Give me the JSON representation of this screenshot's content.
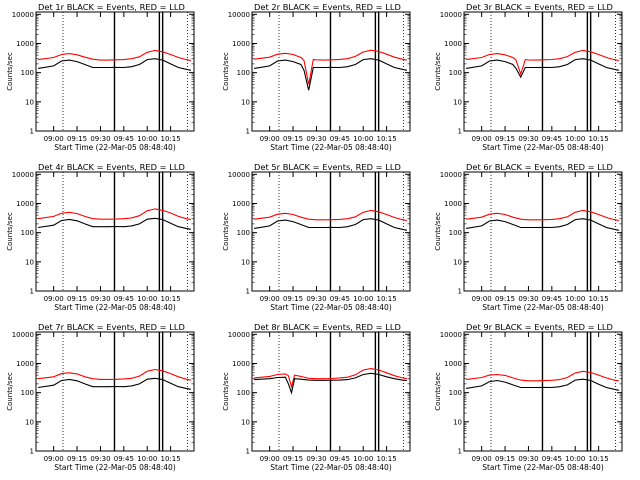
{
  "page": {
    "background": "#ffffff",
    "frame_color": "#000000"
  },
  "colors": {
    "events": "#000000",
    "lld": "#ff0000"
  },
  "common": {
    "xlabel": "Start Time (22-Mar-05 08:48:40)",
    "ylabel": "Counts/sec",
    "x_ticks": [
      "09:00",
      "09:15",
      "09:30",
      "09:45",
      "10:00",
      "10:15"
    ],
    "y_ticks": [
      "1",
      "10",
      "100",
      "1000",
      "10000"
    ]
  },
  "chart_data": [
    {
      "type": "line",
      "y_scale": "log",
      "title": "Det 1r BLACK = Events, RED = LLD",
      "xlim": [
        "08:48:40",
        "10:30:00"
      ],
      "ylim": [
        1,
        12000
      ],
      "x": [
        "08:50",
        "09:00",
        "09:05",
        "09:10",
        "09:15",
        "09:20",
        "09:25",
        "09:30",
        "09:35",
        "09:40",
        "09:45",
        "09:50",
        "09:55",
        "10:00",
        "10:05",
        "10:10",
        "10:15",
        "10:20",
        "10:25",
        "10:28"
      ],
      "series": [
        {
          "name": "LLD",
          "color": "red",
          "values": [
            280,
            330,
            420,
            450,
            410,
            340,
            290,
            270,
            270,
            275,
            280,
            300,
            350,
            500,
            580,
            520,
            420,
            330,
            280,
            260
          ]
        },
        {
          "name": "Events",
          "color": "black",
          "values": [
            140,
            170,
            250,
            270,
            240,
            190,
            150,
            150,
            150,
            152,
            150,
            160,
            190,
            280,
            300,
            270,
            200,
            150,
            130,
            120
          ]
        }
      ]
    },
    {
      "type": "line",
      "y_scale": "log",
      "title": "Det 2r BLACK = Events, RED = LLD",
      "xlim": [
        "08:48:40",
        "10:30:00"
      ],
      "ylim": [
        1,
        12000
      ],
      "x": [
        "08:50",
        "09:00",
        "09:05",
        "09:10",
        "09:15",
        "09:20",
        "09:22",
        "09:25",
        "09:28",
        "09:30",
        "09:35",
        "09:40",
        "09:45",
        "09:50",
        "09:55",
        "10:00",
        "10:05",
        "10:10",
        "10:15",
        "10:20",
        "10:25",
        "10:28"
      ],
      "series": [
        {
          "name": "LLD",
          "color": "red",
          "values": [
            290,
            340,
            430,
            460,
            420,
            330,
            260,
            40,
            280,
            275,
            270,
            275,
            285,
            300,
            360,
            510,
            590,
            530,
            430,
            340,
            290,
            270
          ]
        },
        {
          "name": "Events",
          "color": "black",
          "values": [
            140,
            170,
            250,
            270,
            240,
            190,
            120,
            25,
            150,
            150,
            150,
            152,
            150,
            160,
            190,
            280,
            300,
            270,
            200,
            150,
            130,
            120
          ]
        }
      ]
    },
    {
      "type": "line",
      "y_scale": "log",
      "title": "Det 3r BLACK = Events, RED = LLD",
      "xlim": [
        "08:48:40",
        "10:30:00"
      ],
      "ylim": [
        1,
        12000
      ],
      "x": [
        "08:50",
        "09:00",
        "09:05",
        "09:10",
        "09:15",
        "09:20",
        "09:22",
        "09:25",
        "09:28",
        "09:30",
        "09:35",
        "09:40",
        "09:45",
        "09:50",
        "09:55",
        "10:00",
        "10:05",
        "10:10",
        "10:15",
        "10:20",
        "10:25",
        "10:28"
      ],
      "series": [
        {
          "name": "LLD",
          "color": "red",
          "values": [
            280,
            330,
            420,
            450,
            410,
            330,
            270,
            90,
            280,
            272,
            270,
            275,
            282,
            300,
            355,
            500,
            580,
            520,
            420,
            330,
            280,
            260
          ]
        },
        {
          "name": "Events",
          "color": "black",
          "values": [
            140,
            170,
            250,
            270,
            240,
            190,
            140,
            70,
            150,
            150,
            150,
            152,
            150,
            160,
            190,
            280,
            300,
            270,
            200,
            150,
            130,
            120
          ]
        }
      ]
    },
    {
      "type": "line",
      "y_scale": "log",
      "title": "Det 4r BLACK = Events, RED = LLD",
      "xlim": [
        "08:48:40",
        "10:30:00"
      ],
      "ylim": [
        1,
        12000
      ],
      "x": [
        "08:50",
        "09:00",
        "09:05",
        "09:10",
        "09:15",
        "09:20",
        "09:25",
        "09:30",
        "09:35",
        "09:40",
        "09:45",
        "09:50",
        "09:55",
        "10:00",
        "10:05",
        "10:10",
        "10:15",
        "10:20",
        "10:25",
        "10:28"
      ],
      "series": [
        {
          "name": "LLD",
          "color": "red",
          "values": [
            300,
            360,
            460,
            500,
            450,
            360,
            300,
            290,
            290,
            292,
            300,
            320,
            380,
            560,
            650,
            580,
            470,
            360,
            300,
            280
          ]
        },
        {
          "name": "Events",
          "color": "black",
          "values": [
            150,
            180,
            260,
            285,
            255,
            200,
            160,
            160,
            160,
            162,
            160,
            170,
            200,
            290,
            310,
            280,
            210,
            160,
            140,
            130
          ]
        }
      ]
    },
    {
      "type": "line",
      "y_scale": "log",
      "title": "Det 5r BLACK = Events, RED = LLD",
      "xlim": [
        "08:48:40",
        "10:30:00"
      ],
      "ylim": [
        1,
        12000
      ],
      "x": [
        "08:50",
        "09:00",
        "09:05",
        "09:10",
        "09:15",
        "09:20",
        "09:25",
        "09:30",
        "09:35",
        "09:40",
        "09:45",
        "09:50",
        "09:55",
        "10:00",
        "10:05",
        "10:10",
        "10:15",
        "10:20",
        "10:25",
        "10:28"
      ],
      "series": [
        {
          "name": "LLD",
          "color": "red",
          "values": [
            290,
            340,
            430,
            460,
            420,
            340,
            290,
            275,
            275,
            278,
            285,
            300,
            350,
            500,
            580,
            520,
            420,
            330,
            280,
            260
          ]
        },
        {
          "name": "Events",
          "color": "black",
          "values": [
            140,
            170,
            250,
            270,
            240,
            190,
            150,
            150,
            150,
            152,
            150,
            160,
            190,
            280,
            300,
            270,
            200,
            150,
            130,
            120
          ]
        }
      ]
    },
    {
      "type": "line",
      "y_scale": "log",
      "title": "Det 6r BLACK = Events, RED = LLD",
      "xlim": [
        "08:48:40",
        "10:30:00"
      ],
      "ylim": [
        1,
        12000
      ],
      "x": [
        "08:50",
        "09:00",
        "09:05",
        "09:10",
        "09:15",
        "09:20",
        "09:25",
        "09:30",
        "09:35",
        "09:40",
        "09:45",
        "09:50",
        "09:55",
        "10:00",
        "10:05",
        "10:10",
        "10:15",
        "10:20",
        "10:25",
        "10:28"
      ],
      "series": [
        {
          "name": "LLD",
          "color": "red",
          "values": [
            290,
            340,
            430,
            460,
            420,
            340,
            290,
            275,
            275,
            278,
            285,
            300,
            350,
            500,
            580,
            520,
            420,
            330,
            280,
            260
          ]
        },
        {
          "name": "Events",
          "color": "black",
          "values": [
            140,
            170,
            250,
            270,
            240,
            190,
            150,
            150,
            150,
            152,
            150,
            160,
            190,
            280,
            300,
            270,
            200,
            150,
            130,
            120
          ]
        }
      ]
    },
    {
      "type": "line",
      "y_scale": "log",
      "title": "Det 7r BLACK = Events, RED = LLD",
      "xlim": [
        "08:48:40",
        "10:30:00"
      ],
      "ylim": [
        1,
        12000
      ],
      "x": [
        "08:50",
        "09:00",
        "09:05",
        "09:10",
        "09:15",
        "09:20",
        "09:25",
        "09:30",
        "09:35",
        "09:40",
        "09:45",
        "09:50",
        "09:55",
        "10:00",
        "10:05",
        "10:10",
        "10:15",
        "10:20",
        "10:25",
        "10:28"
      ],
      "series": [
        {
          "name": "LLD",
          "color": "red",
          "values": [
            300,
            350,
            450,
            480,
            440,
            350,
            300,
            285,
            285,
            288,
            295,
            310,
            370,
            540,
            620,
            560,
            450,
            350,
            290,
            270
          ]
        },
        {
          "name": "Events",
          "color": "black",
          "values": [
            150,
            180,
            260,
            285,
            255,
            200,
            160,
            160,
            160,
            162,
            160,
            170,
            200,
            290,
            310,
            280,
            210,
            160,
            140,
            130
          ]
        }
      ]
    },
    {
      "type": "line",
      "y_scale": "log",
      "title": "Det 8r BLACK = Events, RED = LLD",
      "xlim": [
        "08:48:40",
        "10:30:00"
      ],
      "ylim": [
        1,
        12000
      ],
      "x": [
        "08:50",
        "09:00",
        "09:05",
        "09:10",
        "09:12",
        "09:14",
        "09:16",
        "09:20",
        "09:25",
        "09:30",
        "09:35",
        "09:40",
        "09:45",
        "09:50",
        "09:55",
        "10:00",
        "10:05",
        "10:10",
        "10:15",
        "10:20",
        "10:25",
        "10:28"
      ],
      "series": [
        {
          "name": "LLD",
          "color": "red",
          "values": [
            320,
            360,
            420,
            440,
            380,
            160,
            400,
            360,
            310,
            300,
            300,
            305,
            320,
            340,
            410,
            600,
            670,
            600,
            480,
            380,
            320,
            300
          ]
        },
        {
          "name": "Events",
          "color": "black",
          "values": [
            280,
            300,
            330,
            340,
            200,
            100,
            300,
            290,
            270,
            265,
            265,
            268,
            270,
            280,
            320,
            420,
            460,
            420,
            350,
            300,
            270,
            260
          ]
        }
      ]
    },
    {
      "type": "line",
      "y_scale": "log",
      "title": "Det 9r BLACK = Events, RED = LLD",
      "xlim": [
        "08:48:40",
        "10:30:00"
      ],
      "ylim": [
        1,
        12000
      ],
      "x": [
        "08:50",
        "09:00",
        "09:05",
        "09:10",
        "09:15",
        "09:20",
        "09:25",
        "09:30",
        "09:35",
        "09:40",
        "09:45",
        "09:50",
        "09:55",
        "10:00",
        "10:05",
        "10:10",
        "10:15",
        "10:20",
        "10:25",
        "10:28"
      ],
      "series": [
        {
          "name": "LLD",
          "color": "red",
          "values": [
            280,
            330,
            400,
            420,
            390,
            320,
            270,
            255,
            255,
            258,
            265,
            280,
            330,
            470,
            540,
            490,
            400,
            320,
            270,
            250
          ]
        },
        {
          "name": "Events",
          "color": "black",
          "values": [
            140,
            170,
            240,
            260,
            230,
            185,
            150,
            150,
            150,
            152,
            150,
            160,
            185,
            270,
            290,
            260,
            195,
            150,
            130,
            120
          ]
        }
      ]
    }
  ]
}
